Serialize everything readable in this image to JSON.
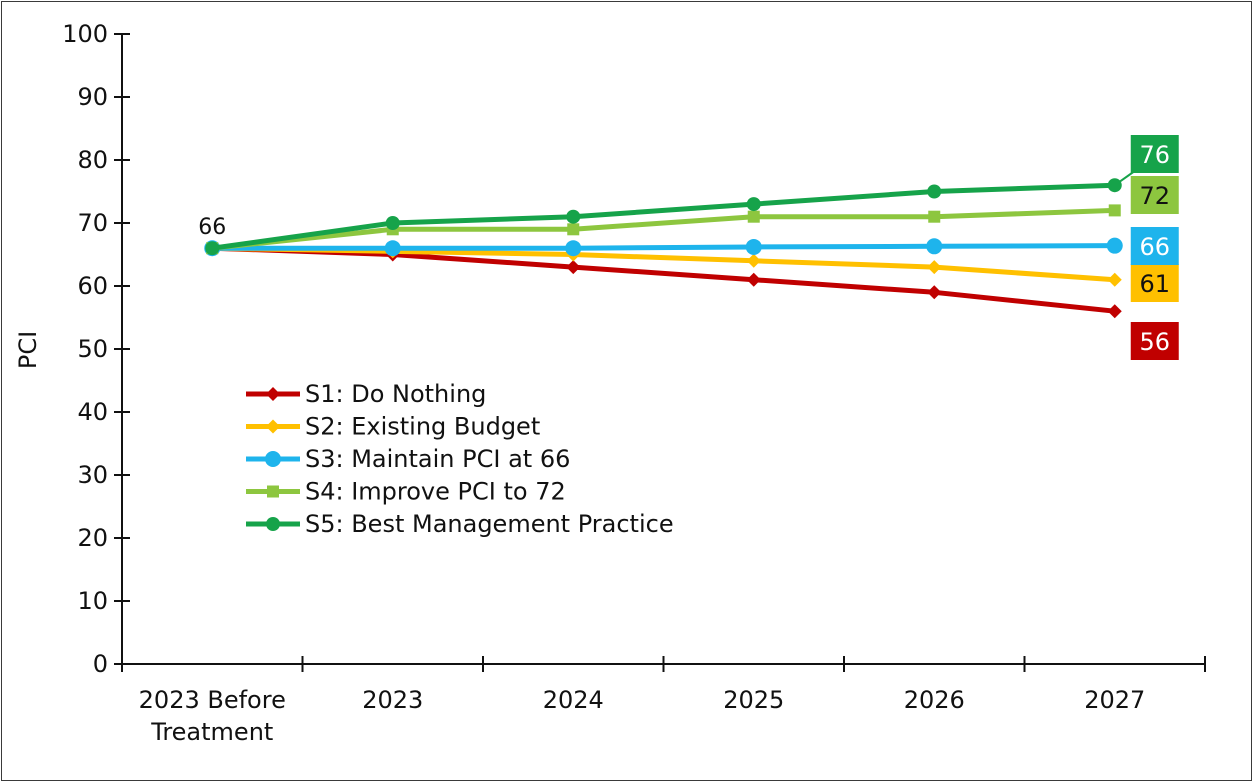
{
  "chart_data": {
    "type": "line",
    "title": "",
    "xlabel": "",
    "ylabel": "PCI",
    "ylim": [
      0,
      100
    ],
    "yticks": [
      "0",
      "10",
      "20",
      "30",
      "40",
      "50",
      "60",
      "70",
      "80",
      "90",
      "100"
    ],
    "categories": [
      "2023 Before Treatment",
      "2023",
      "2024",
      "2025",
      "2026",
      "2027"
    ],
    "category_lines": [
      [
        "2023 Before",
        "Treatment"
      ],
      [
        "2023"
      ],
      [
        "2024"
      ],
      [
        "2025"
      ],
      [
        "2026"
      ],
      [
        "2027"
      ]
    ],
    "grid": false,
    "legend_position": "center-left",
    "start_annotation": "66",
    "series": [
      {
        "name": "S1: Do Nothing",
        "color": "#c00000",
        "marker": "diamond",
        "values": [
          66,
          65,
          63,
          61,
          59,
          56
        ],
        "end_label": "56",
        "end_label_bg": "#c00000",
        "end_label_color": "#ffffff"
      },
      {
        "name": "S2: Existing Budget",
        "color": "#ffc000",
        "marker": "diamond",
        "values": [
          66,
          65.5,
          65,
          64,
          63,
          61
        ],
        "end_label": "61",
        "end_label_bg": "#ffc000",
        "end_label_color": "#111111"
      },
      {
        "name": "S3: Maintain PCI at 66",
        "color": "#1eb4ec",
        "marker": "circle",
        "values": [
          66,
          66,
          66,
          66.2,
          66.3,
          66.4
        ],
        "end_label": "66",
        "end_label_bg": "#1eb4ec",
        "end_label_color": "#ffffff"
      },
      {
        "name": "S4: Improve PCI to 72",
        "color": "#8dc63f",
        "marker": "square",
        "values": [
          66,
          69,
          69,
          71,
          71,
          72
        ],
        "end_label": "72",
        "end_label_bg": "#8dc63f",
        "end_label_color": "#111111"
      },
      {
        "name": "S5: Best Management Practice",
        "color": "#16a34a",
        "marker": "circle",
        "values": [
          66,
          70,
          71,
          73,
          75,
          76
        ],
        "end_label": "76",
        "end_label_bg": "#16a34a",
        "end_label_color": "#ffffff"
      }
    ]
  }
}
